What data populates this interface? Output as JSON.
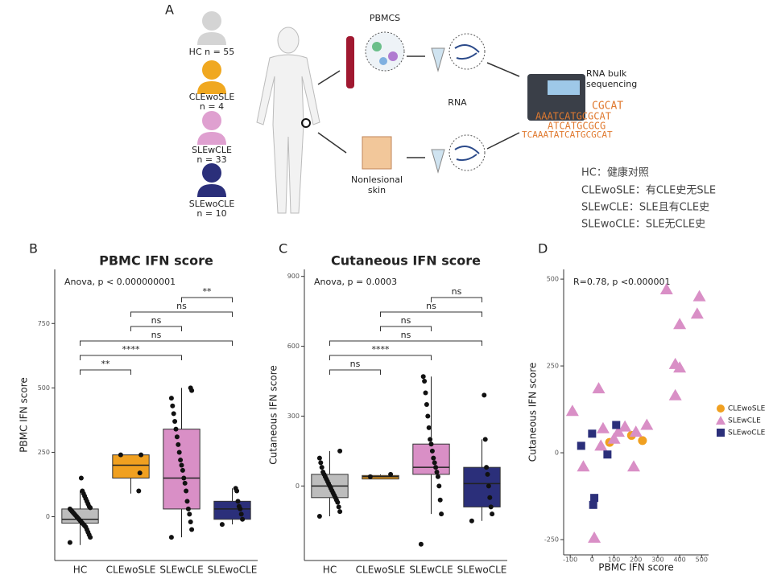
{
  "panel_a": {
    "panel": "A",
    "groups": [
      {
        "label": "HC n = 55"
      },
      {
        "label": "CLEwoSLE",
        "n": "n = 4"
      },
      {
        "label": "SLEwCLE",
        "n": "n = 33"
      },
      {
        "label": "SLEwoCLE",
        "n": "n = 10"
      }
    ],
    "pbmcs": "PBMCS",
    "rna": "RNA",
    "skin": [
      "Nonlesional",
      "skin"
    ],
    "sequencing": [
      "RNA bulk",
      "sequencing"
    ],
    "dna": [
      "CGCAT",
      "AAATCATGCGCAT",
      "ATCATGCGCG",
      "TCAAATATCATGCGCAT"
    ],
    "legend": [
      "HC：健康对照",
      "CLEwoSLE：有CLE史无SLE",
      "SLEwCLE：SLE且有CLE史",
      "SLEwoCLE：SLE无CLE史"
    ]
  },
  "chart_data": [
    {
      "type": "box",
      "panel": "B",
      "title": "PBMC IFN score",
      "ylabel": "PBMC IFN score",
      "annotation": "Anova, p < 0.000000001",
      "categories": [
        "HC",
        "CLEwoSLE",
        "SLEwCLE",
        "SLEwoCLE"
      ],
      "colors": [
        "#bdbdbd",
        "#f0a020",
        "#d98fc6",
        "#2b2f7a"
      ],
      "boxes": [
        {
          "low": -110,
          "q1": -25,
          "median": -10,
          "q3": 30,
          "high": 100
        },
        {
          "low": 90,
          "q1": 150,
          "median": 200,
          "q3": 240,
          "high": 240
        },
        {
          "low": -80,
          "q1": 30,
          "median": 150,
          "q3": 340,
          "high": 500
        },
        {
          "low": -30,
          "q1": -10,
          "median": 30,
          "q3": 60,
          "high": 110
        }
      ],
      "points": [
        [
          -100,
          -80,
          -70,
          -60,
          -50,
          -40,
          -35,
          -30,
          -25,
          -20,
          -15,
          -10,
          -5,
          0,
          5,
          10,
          15,
          20,
          25,
          30,
          35,
          40,
          50,
          60,
          70,
          80,
          90,
          100,
          150
        ],
        [
          240,
          240,
          170,
          100
        ],
        [
          -80,
          -50,
          -20,
          10,
          30,
          60,
          100,
          130,
          150,
          180,
          200,
          220,
          250,
          280,
          310,
          340,
          370,
          400,
          430,
          460,
          490,
          500
        ],
        [
          -30,
          -10,
          10,
          30,
          40,
          60,
          100,
          110
        ]
      ],
      "comparisons": [
        {
          "label": "**",
          "groups": [
            "HC",
            "CLEwoSLE"
          ]
        },
        {
          "label": "****",
          "groups": [
            "HC",
            "SLEwCLE"
          ]
        },
        {
          "label": "ns",
          "groups": [
            "HC",
            "SLEwoCLE"
          ]
        },
        {
          "label": "ns",
          "groups": [
            "CLEwoSLE",
            "SLEwCLE"
          ]
        },
        {
          "label": "ns",
          "groups": [
            "CLEwoSLE",
            "SLEwoCLE"
          ]
        },
        {
          "label": "**",
          "groups": [
            "SLEwCLE",
            "SLEwoCLE"
          ]
        }
      ],
      "ylim": [
        -170,
        960
      ],
      "yticks": [
        0,
        250,
        500,
        750
      ]
    },
    {
      "type": "box",
      "panel": "C",
      "title": "Cutaneous IFN score",
      "ylabel": "Cutaneous IFN score",
      "annotation": "Anova, p = 0.0003",
      "categories": [
        "HC",
        "CLEwoSLE",
        "SLEwCLE",
        "SLEwoCLE"
      ],
      "colors": [
        "#bdbdbd",
        "#f0a020",
        "#d98fc6",
        "#2b2f7a"
      ],
      "boxes": [
        {
          "low": -130,
          "q1": -50,
          "median": 0,
          "q3": 50,
          "high": 150
        },
        {
          "low": 30,
          "q1": 30,
          "median": 40,
          "q3": 45,
          "high": 50
        },
        {
          "low": -120,
          "q1": 50,
          "median": 80,
          "q3": 180,
          "high": 470
        },
        {
          "low": -150,
          "q1": -90,
          "median": 10,
          "q3": 80,
          "high": 200
        }
      ],
      "points": [
        [
          -130,
          -110,
          -90,
          -70,
          -60,
          -50,
          -40,
          -30,
          -20,
          -10,
          0,
          10,
          20,
          30,
          40,
          50,
          60,
          80,
          100,
          120,
          150
        ],
        [
          40,
          50
        ],
        [
          -250,
          -120,
          -60,
          0,
          40,
          60,
          80,
          100,
          120,
          150,
          180,
          200,
          250,
          300,
          350,
          400,
          450,
          470
        ],
        [
          -150,
          -120,
          -90,
          -50,
          0,
          50,
          80,
          200,
          390
        ]
      ],
      "comparisons": [
        {
          "label": "ns",
          "groups": [
            "HC",
            "CLEwoSLE"
          ]
        },
        {
          "label": "****",
          "groups": [
            "HC",
            "SLEwCLE"
          ]
        },
        {
          "label": "ns",
          "groups": [
            "HC",
            "SLEwoCLE"
          ]
        },
        {
          "label": "ns",
          "groups": [
            "CLEwoSLE",
            "SLEwCLE"
          ]
        },
        {
          "label": "ns",
          "groups": [
            "CLEwoSLE",
            "SLEwoCLE"
          ]
        },
        {
          "label": "ns",
          "groups": [
            "SLEwCLE",
            "SLEwoCLE"
          ]
        }
      ],
      "ylim": [
        -320,
        930
      ],
      "yticks": [
        0,
        300,
        600,
        900
      ]
    },
    {
      "type": "scatter",
      "panel": "D",
      "xlabel": "PBMC IFN score",
      "ylabel": "Cutaneous IFN score",
      "annotation": "R=0.78, p <0.000001",
      "series": [
        {
          "name": "CLEwoSLE",
          "color": "#f0a020",
          "marker": "circle",
          "x": [
            80,
            180,
            230
          ],
          "y": [
            30,
            50,
            35
          ]
        },
        {
          "name": "SLEwCLE",
          "color": "#d98fc6",
          "marker": "triangle",
          "x": [
            -90,
            -40,
            10,
            30,
            40,
            50,
            100,
            120,
            150,
            190,
            200,
            250,
            340,
            380,
            380,
            400,
            400,
            490,
            480
          ],
          "y": [
            120,
            -40,
            -245,
            185,
            20,
            70,
            40,
            60,
            75,
            -40,
            60,
            80,
            470,
            255,
            165,
            245,
            370,
            450,
            400
          ]
        },
        {
          "name": "SLEwoCLE",
          "color": "#2b2f7a",
          "marker": "square",
          "x": [
            -50,
            0,
            10,
            5,
            110,
            70
          ],
          "y": [
            20,
            55,
            -130,
            -150,
            80,
            -5
          ]
        }
      ],
      "xlim": [
        -130,
        532
      ],
      "ylim": [
        -294,
        528
      ],
      "xticks": [
        -100,
        0,
        100,
        200,
        300,
        400,
        500
      ],
      "yticks": [
        -250,
        0,
        250,
        500
      ]
    }
  ]
}
